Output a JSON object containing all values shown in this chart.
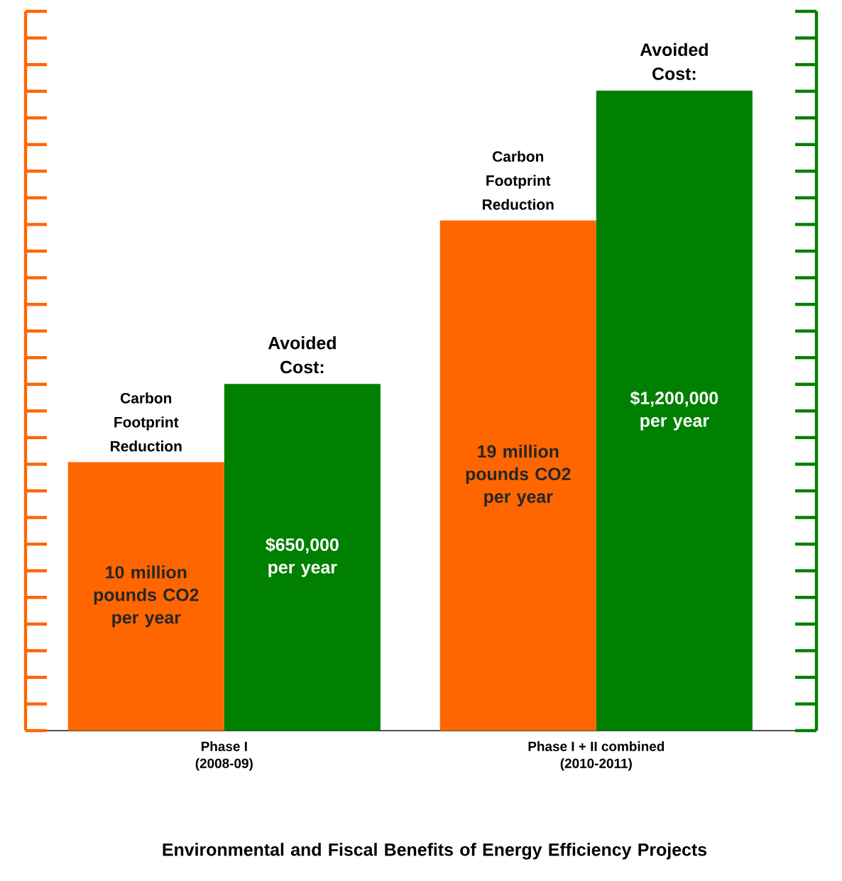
{
  "chart_data": {
    "type": "bar",
    "title": "Environmental and Fiscal Benefits of Energy Efficiency Projects",
    "categories": [
      "Phase I (2008-09)",
      "Phase I + II combined (2010-2011)"
    ],
    "series": [
      {
        "name": "Carbon Footprint Reduction",
        "color": "#ff6600",
        "values": [
          10000000,
          19000000
        ],
        "value_labels": [
          "10 million pounds CO2 per year",
          "19 million pounds CO2 per year"
        ]
      },
      {
        "name": "Avoided Cost:",
        "color": "#008000",
        "axis": "y2",
        "values": [
          650000,
          1200000
        ],
        "value_labels": [
          "$650,000 per year",
          "$1,200,000 per year"
        ]
      }
    ],
    "tick_labels": "x"
  }
}
